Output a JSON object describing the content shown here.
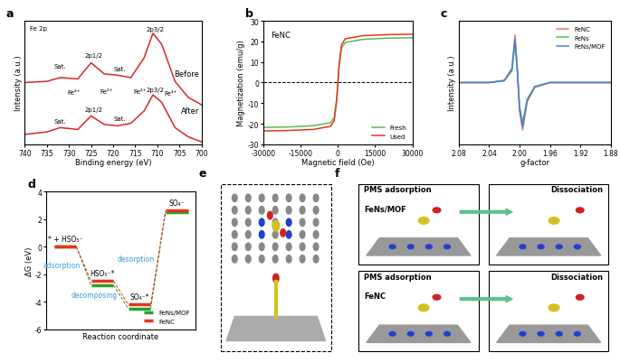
{
  "chart_data": [
    {
      "type": "line",
      "title": "a",
      "xlabel": "Binding energy (eV)",
      "ylabel": "Intensity (a.u.)",
      "x": [
        740,
        735,
        732,
        728,
        725,
        722,
        719,
        716,
        713,
        711,
        709,
        706,
        703,
        700
      ],
      "series": [
        {
          "name": "Before",
          "color": "#d62728",
          "values": [
            5.0,
            5.1,
            5.4,
            5.3,
            6.6,
            5.7,
            5.6,
            5.4,
            7.0,
            9.0,
            8.1,
            5.1,
            3.8,
            3.2
          ]
        },
        {
          "name": "After",
          "color": "#d62728",
          "values": [
            0.8,
            1.0,
            1.35,
            1.2,
            2.3,
            1.6,
            1.5,
            1.7,
            2.7,
            4.0,
            3.4,
            1.35,
            0.6,
            0.2
          ]
        }
      ],
      "xlim": [
        740,
        700
      ],
      "xticks": [
        740,
        735,
        730,
        725,
        720,
        715,
        710,
        705,
        700
      ],
      "ylim": [
        0,
        10
      ],
      "tick_labels": "x",
      "annotations": [
        "Fe 2p",
        "Sat.",
        "2p1/2",
        "Sat.",
        "2p3/2",
        "Fe³⁺",
        "Fe²⁺",
        "Fe²⁺",
        "Fe³⁺",
        "Sat.",
        "2p1/2",
        "Sat.",
        "2p3/2"
      ]
    },
    {
      "type": "line",
      "title": "b",
      "xlabel": "Magnetic field (Oe)",
      "ylabel": "Magnetization (emu/g)",
      "x": [
        -30000,
        -20000,
        -10000,
        -3000,
        -1500,
        -500,
        0,
        500,
        1500,
        3000,
        10000,
        20000,
        30000
      ],
      "series": [
        {
          "name": "Fresh",
          "color": "#5cb85c",
          "values": [
            -21.8,
            -21.6,
            -21.0,
            -19.5,
            -17,
            -8,
            0,
            8,
            17,
            19.5,
            21.0,
            21.6,
            21.8
          ]
        },
        {
          "name": "Used",
          "color": "#e8341c",
          "values": [
            -23.5,
            -23.3,
            -22.8,
            -21.3,
            -18.5,
            -9,
            0,
            9,
            18.5,
            21.3,
            22.8,
            23.3,
            23.5
          ]
        }
      ],
      "xlim": [
        -30000,
        30000
      ],
      "xticks": [
        -30000,
        -15000,
        0,
        15000,
        30000
      ],
      "ylim": [
        -30,
        30
      ],
      "yticks": [
        -30,
        -20,
        -10,
        0,
        10,
        20,
        30
      ],
      "legend": "lower right",
      "annotations": [
        "FeNC"
      ]
    },
    {
      "type": "line",
      "title": "c",
      "xlabel": "g-factor",
      "ylabel": "Intensity (a.u.)",
      "x": [
        2.08,
        2.04,
        2.02,
        2.01,
        2.006,
        2.003,
        2.0,
        1.996,
        1.99,
        1.98,
        1.96,
        1.92,
        1.88
      ],
      "series": [
        {
          "name": "FeNC",
          "color": "#f07070",
          "values": [
            0,
            0,
            0.05,
            0.3,
            1.0,
            0.3,
            -0.6,
            -1.0,
            -0.4,
            -0.1,
            0,
            0,
            0
          ]
        },
        {
          "name": "FeNs",
          "color": "#5cb85c",
          "values": [
            0,
            0,
            0.04,
            0.25,
            0.85,
            0.25,
            -0.5,
            -0.85,
            -0.35,
            -0.08,
            0,
            0,
            0
          ]
        },
        {
          "name": "FeNs/MOF",
          "color": "#4a7fd4",
          "values": [
            0,
            0,
            0.04,
            0.28,
            0.92,
            0.28,
            -0.55,
            -0.92,
            -0.38,
            -0.09,
            0,
            0,
            0
          ]
        }
      ],
      "xlim": [
        2.08,
        1.88
      ],
      "xticks": [
        2.08,
        2.04,
        {
          "value": 2.0,
          "label": "2.00"
        },
        1.96,
        1.92,
        1.88
      ],
      "ylim": [
        -1.3,
        1.3
      ],
      "tick_labels": "x",
      "legend": "upper right"
    },
    {
      "type": "step",
      "title": "d",
      "xlabel": "Reaction coordinate",
      "ylabel": "ΔG (eV)",
      "categories": [
        "* + HSO₅⁻",
        "HSO₅⁻*",
        "SO₄⁻*",
        "SO₄⁻"
      ],
      "series": [
        {
          "name": "FeNs/MOF",
          "color": "#2ca02c",
          "values": [
            0,
            -2.8,
            -4.5,
            2.5
          ]
        },
        {
          "name": "FeNC",
          "color": "#e8341c",
          "values": [
            0,
            -2.5,
            -4.2,
            2.6
          ]
        }
      ],
      "ylim": [
        -6,
        4
      ],
      "yticks": [
        -6,
        -4,
        -2,
        0,
        2,
        4
      ],
      "tick_labels": "y",
      "legend": "lower right",
      "annotations": [
        "adsorption",
        "decomposing",
        "desorption"
      ]
    },
    {
      "type": "diagram",
      "title": "e"
    },
    {
      "type": "diagram",
      "title": "f",
      "texts": [
        "FeNs/MOF",
        "PMS adsorption",
        "Dissociation",
        "FeNC",
        "PMS adsorption",
        "Dissociation"
      ]
    }
  ]
}
